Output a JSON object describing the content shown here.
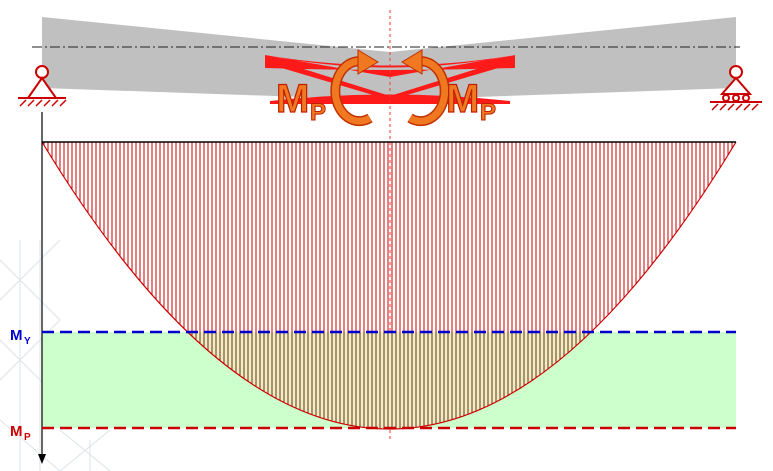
{
  "beam": {
    "color": "#c0c0c0",
    "hinge_color": "#ff0000",
    "axis_color": "#222222"
  },
  "moments": {
    "left_label": "M",
    "left_sub": "P",
    "right_label": "M",
    "right_sub": "P",
    "text_color": "#f07820",
    "arrow_color": "#f07820"
  },
  "levels": {
    "my_label": "M",
    "my_sub": "Y",
    "my_color": "#0000cc",
    "mp_label": "M",
    "mp_sub": "P",
    "mp_color": "#cc0000",
    "band_color": "#ccffcc"
  },
  "diagram": {
    "hatch_color": "#cc0000",
    "axis_color": "#000000"
  }
}
